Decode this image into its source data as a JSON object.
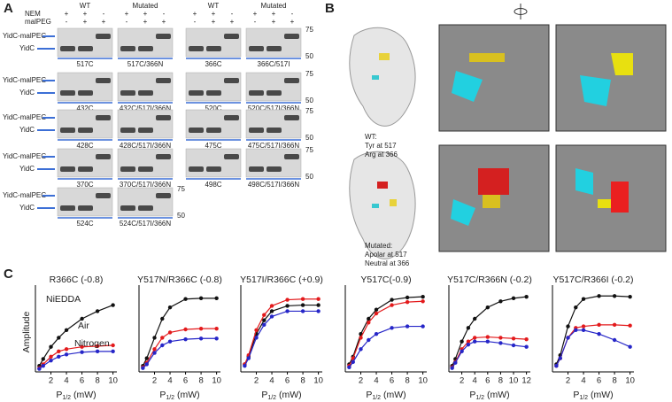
{
  "panel_a": {
    "letter": "A",
    "headers": [
      "WT",
      "Mutated",
      "WT",
      "Mutated"
    ],
    "row_labels": [
      "NEM",
      "malPEG"
    ],
    "nem": [
      "+",
      "+",
      "-"
    ],
    "malpeg": [
      "-",
      "+",
      "+"
    ],
    "bands": [
      "YidC-malPEG",
      "YidC"
    ],
    "markers": [
      "75",
      "50"
    ],
    "gels": [
      [
        "517C",
        "517C/366N",
        "366C",
        "366C/517I"
      ],
      [
        "432C",
        "432C/517I/366N",
        "520C",
        "520C/517I/366N"
      ],
      [
        "428C",
        "428C/517I/366N",
        "475C",
        "475C/517I/366N"
      ],
      [
        "370C",
        "370C/517I/366N",
        "498C",
        "498C/517I/366N"
      ],
      [
        "524C",
        "524C/517I/366N"
      ]
    ]
  },
  "panel_b": {
    "letter": "B",
    "wt": [
      "WT:",
      "Tyr at 517",
      "Arg at 366"
    ],
    "mutated": [
      "Mutated:",
      "Apolar at 517",
      "Neutral at 366"
    ]
  },
  "panel_c": {
    "letter": "C"
  },
  "chart_data": [
    {
      "type": "line",
      "title": "R366C (-0.8)",
      "y_label": "Amplitude",
      "x_label": [
        "P",
        "1/2",
        " (mW)"
      ],
      "x": [
        0.5,
        1,
        2,
        3,
        4,
        6,
        8,
        10
      ],
      "xlim": [
        0,
        10.5
      ],
      "xticks": [
        2,
        4,
        6,
        8,
        10
      ],
      "ylim": [
        0,
        1.05
      ],
      "series": [
        {
          "name": "NiEDDA",
          "color": "#111111",
          "values": [
            0.08,
            0.17,
            0.33,
            0.45,
            0.55,
            0.7,
            0.8,
            0.88
          ]
        },
        {
          "name": "Air",
          "color": "#e31a1c",
          "values": [
            0.05,
            0.1,
            0.2,
            0.27,
            0.3,
            0.33,
            0.34,
            0.35
          ]
        },
        {
          "name": "Nitrogen",
          "color": "#2626c8",
          "values": [
            0.04,
            0.08,
            0.15,
            0.2,
            0.23,
            0.26,
            0.27,
            0.27
          ]
        }
      ]
    },
    {
      "type": "line",
      "title": "Y517N/R366C (-0.8)",
      "x_label": [
        "P",
        "1/2",
        " (mW)"
      ],
      "x": [
        0.5,
        1,
        2,
        3,
        4,
        6,
        8,
        10
      ],
      "xlim": [
        0,
        10.5
      ],
      "xticks": [
        2,
        4,
        6,
        8,
        10
      ],
      "ylim": [
        0,
        1.05
      ],
      "series": [
        {
          "color": "#111111",
          "values": [
            0.08,
            0.18,
            0.45,
            0.7,
            0.85,
            0.96,
            0.97,
            0.97
          ]
        },
        {
          "color": "#e31a1c",
          "values": [
            0.06,
            0.12,
            0.3,
            0.45,
            0.52,
            0.56,
            0.57,
            0.57
          ]
        },
        {
          "color": "#2626c8",
          "values": [
            0.05,
            0.1,
            0.25,
            0.35,
            0.4,
            0.43,
            0.44,
            0.44
          ]
        }
      ]
    },
    {
      "type": "line",
      "title": "Y517I/R366C (+0.9)",
      "x_label": [
        "P",
        "1/2",
        " (mW)"
      ],
      "x": [
        0.5,
        1,
        2,
        3,
        4,
        6,
        8,
        10
      ],
      "xlim": [
        0,
        10.5
      ],
      "xticks": [
        2,
        4,
        6,
        8,
        10
      ],
      "ylim": [
        0,
        1.05
      ],
      "series": [
        {
          "color": "#111111",
          "values": [
            0.1,
            0.2,
            0.5,
            0.68,
            0.8,
            0.87,
            0.88,
            0.88
          ]
        },
        {
          "color": "#e31a1c",
          "values": [
            0.1,
            0.22,
            0.55,
            0.75,
            0.87,
            0.95,
            0.96,
            0.96
          ]
        },
        {
          "color": "#2626c8",
          "values": [
            0.08,
            0.18,
            0.45,
            0.62,
            0.73,
            0.8,
            0.8,
            0.8
          ]
        }
      ]
    },
    {
      "type": "line",
      "title": "Y517C(-0.9)",
      "x_label": [
        "P",
        "1/2",
        " (mW)"
      ],
      "x": [
        0.5,
        1,
        2,
        3,
        4,
        6,
        8,
        10
      ],
      "xlim": [
        0,
        10.5
      ],
      "xticks": [
        2,
        4,
        6,
        8,
        10
      ],
      "ylim": [
        0,
        1.05
      ],
      "series": [
        {
          "color": "#111111",
          "values": [
            0.1,
            0.2,
            0.5,
            0.7,
            0.82,
            0.95,
            0.98,
            0.99
          ]
        },
        {
          "color": "#e31a1c",
          "values": [
            0.08,
            0.18,
            0.45,
            0.65,
            0.77,
            0.88,
            0.92,
            0.93
          ]
        },
        {
          "color": "#2626c8",
          "values": [
            0.06,
            0.13,
            0.3,
            0.42,
            0.5,
            0.58,
            0.6,
            0.6
          ]
        }
      ]
    },
    {
      "type": "line",
      "title": "Y517C/R366N (-0.2)",
      "x_label": [
        "P",
        "1/2",
        " (mW)"
      ],
      "x": [
        0.5,
        1,
        2,
        3,
        4,
        6,
        8,
        10,
        12
      ],
      "xlim": [
        0,
        12.6
      ],
      "xticks": [
        2,
        4,
        6,
        8,
        10,
        12
      ],
      "ylim": [
        0,
        1.05
      ],
      "series": [
        {
          "color": "#111111",
          "values": [
            0.08,
            0.17,
            0.4,
            0.58,
            0.7,
            0.85,
            0.93,
            0.97,
            0.99
          ]
        },
        {
          "color": "#e31a1c",
          "values": [
            0.06,
            0.13,
            0.3,
            0.4,
            0.45,
            0.46,
            0.45,
            0.44,
            0.43
          ]
        },
        {
          "color": "#2626c8",
          "values": [
            0.05,
            0.12,
            0.27,
            0.36,
            0.4,
            0.4,
            0.38,
            0.35,
            0.33
          ]
        }
      ]
    },
    {
      "type": "line",
      "title": "Y517C/R366I (-0.2)",
      "x_label": [
        "P",
        "1/2",
        " (mW)"
      ],
      "x": [
        0.5,
        1,
        2,
        3,
        4,
        6,
        8,
        10
      ],
      "xlim": [
        0,
        10.5
      ],
      "xticks": [
        2,
        4,
        6,
        8,
        10
      ],
      "ylim": [
        0,
        1.05
      ],
      "series": [
        {
          "color": "#111111",
          "values": [
            0.1,
            0.22,
            0.6,
            0.85,
            0.96,
            1.0,
            1.0,
            0.99
          ]
        },
        {
          "color": "#e31a1c",
          "values": [
            0.08,
            0.18,
            0.45,
            0.58,
            0.6,
            0.62,
            0.62,
            0.61
          ]
        },
        {
          "color": "#2626c8",
          "values": [
            0.08,
            0.18,
            0.45,
            0.55,
            0.55,
            0.5,
            0.42,
            0.33
          ]
        }
      ]
    }
  ]
}
